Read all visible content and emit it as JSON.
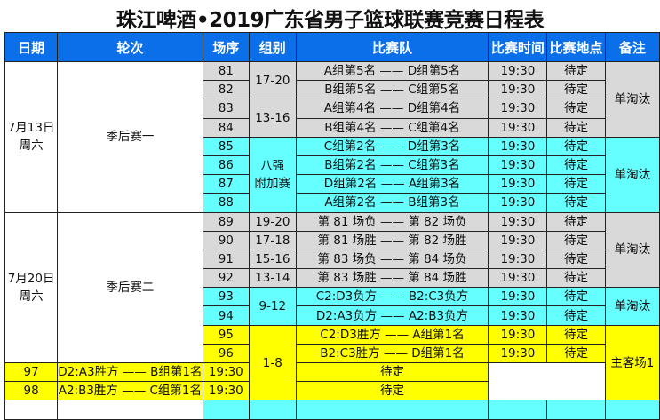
{
  "title": "珠江啤酒•2019广东省男子篮球联赛竞赛日程表",
  "headers": [
    "日期",
    "轮次",
    "场序",
    "组别",
    "比赛队",
    "比赛时间",
    "比赛地点",
    "备注"
  ],
  "colors": {
    "header": "#0a6fe8",
    "gray": "#d9d9d9",
    "cyan": "#66ffff",
    "yellow": "#ffff00"
  },
  "days": [
    {
      "date": "7月13日",
      "weekday": "周六",
      "round": "季后赛一"
    },
    {
      "date": "7月20日",
      "weekday": "周六",
      "round": "季后赛二"
    }
  ],
  "groups": [
    "17-20",
    "13-16",
    "八强\n附加赛",
    "19-20",
    "17-18",
    "15-16",
    "13-14",
    "9-12",
    "1-8"
  ],
  "notes": [
    "单淘汰",
    "单淘汰",
    "单淘汰",
    "单淘汰",
    "主客场1"
  ],
  "rows": [
    {
      "no": "81",
      "teams": "A组第5名 —— D组第5名",
      "time": "19:30",
      "venue": "待定"
    },
    {
      "no": "82",
      "teams": "B组第5名 —— C组第5名",
      "time": "19:30",
      "venue": "待定"
    },
    {
      "no": "83",
      "teams": "A组第4名 —— D组第4名",
      "time": "19:30",
      "venue": "待定"
    },
    {
      "no": "84",
      "teams": "B组第4名 —— C组第4名",
      "time": "19:30",
      "venue": "待定"
    },
    {
      "no": "85",
      "teams": "C组第2名 —— D组第3名",
      "time": "19:30",
      "venue": "待定"
    },
    {
      "no": "86",
      "teams": "B组第2名 —— C组第3名",
      "time": "19:30",
      "venue": "待定"
    },
    {
      "no": "87",
      "teams": "D组第2名 —— A组第3名",
      "time": "19:30",
      "venue": "待定"
    },
    {
      "no": "88",
      "teams": "A组第2名 —— B组第3名",
      "time": "19:30",
      "venue": "待定"
    },
    {
      "no": "89",
      "teams": "第 81 场负 —— 第 82 场负",
      "time": "19:30",
      "venue": "待定"
    },
    {
      "no": "90",
      "teams": "第 81 场胜 —— 第 82 场胜",
      "time": "19:30",
      "venue": "待定"
    },
    {
      "no": "91",
      "teams": "第 83 场负 —— 第 84 场负",
      "time": "19:30",
      "venue": "待定"
    },
    {
      "no": "92",
      "teams": "第 83 场胜 —— 第 84 场胜",
      "time": "19:30",
      "venue": "待定"
    },
    {
      "no": "93",
      "teams": "C2:D3负方 —— B2:C3负方",
      "time": "19:30",
      "venue": "待定"
    },
    {
      "no": "94",
      "teams": "D2:A3负方 —— A2:B3负方",
      "time": "19:30",
      "venue": "待定"
    },
    {
      "no": "95",
      "teams": "C2:D3胜方 —— A组第1名",
      "time": "19:30",
      "venue": "待定"
    },
    {
      "no": "96",
      "teams": "B2:C3胜方 —— D组第1名",
      "time": "19:30",
      "venue": "待定"
    },
    {
      "no": "97",
      "teams": "D2:A3胜方 —— B组第1名",
      "time": "19:30",
      "venue": "待定"
    },
    {
      "no": "98",
      "teams": "A2:B3胜方 —— C组第1名",
      "time": "19:30",
      "venue": "待定"
    }
  ]
}
